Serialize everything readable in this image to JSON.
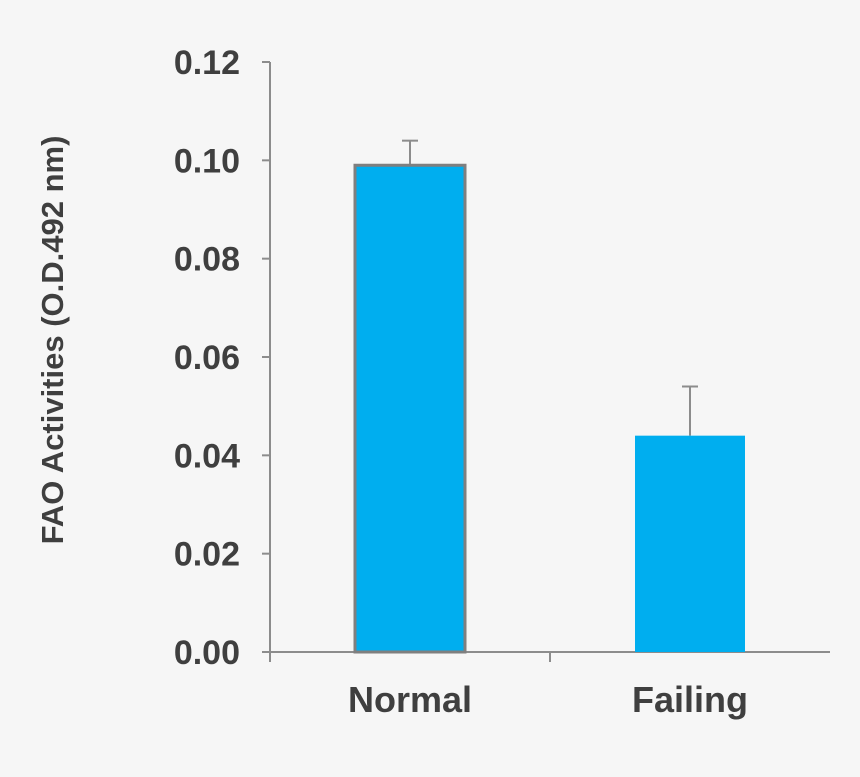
{
  "chart_data": {
    "type": "bar",
    "categories": [
      "Normal",
      "Failing"
    ],
    "series": [
      {
        "values": [
          0.099,
          0.044
        ],
        "errors": [
          0.005,
          0.01
        ]
      }
    ],
    "ylabel": "FAO Activities (O.D.492 nm)",
    "xlabel": "",
    "ylim": [
      0,
      0.12
    ],
    "yticks": [
      "0.00",
      "0.02",
      "0.04",
      "0.06",
      "0.08",
      "0.10",
      "0.12"
    ],
    "grid": false,
    "legend": "none",
    "colors": {
      "bar": "#00aeef",
      "bar_outline": "#7f7f7f",
      "axis": "#8c8c8c",
      "error_bar": "#8c8c8c",
      "text": "#3f3f3f",
      "background": "#f6f6f6"
    }
  }
}
